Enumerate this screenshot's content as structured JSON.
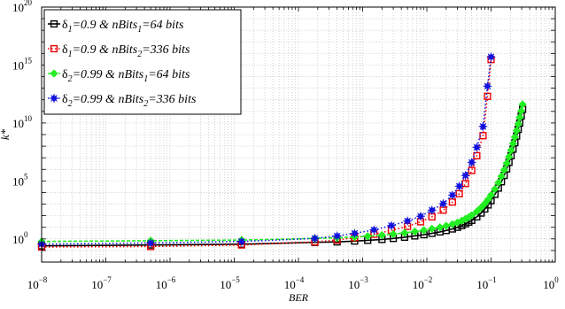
{
  "chart_data": {
    "type": "line",
    "xlabel": "BER",
    "ylabel": "k*",
    "x_scale": "log",
    "y_scale": "log",
    "xlim": [
      1e-08,
      1
    ],
    "ylim": [
      0.01,
      1e+20
    ],
    "x_ticks": [
      {
        "base": "10",
        "exp": "−8",
        "value": 1e-08
      },
      {
        "base": "10",
        "exp": "−7",
        "value": 1e-07
      },
      {
        "base": "10",
        "exp": "−6",
        "value": 1e-06
      },
      {
        "base": "10",
        "exp": "−5",
        "value": 1e-05
      },
      {
        "base": "10",
        "exp": "−4",
        "value": 0.0001
      },
      {
        "base": "10",
        "exp": "−3",
        "value": 0.001
      },
      {
        "base": "10",
        "exp": "−2",
        "value": 0.01
      },
      {
        "base": "10",
        "exp": "−1",
        "value": 0.1
      },
      {
        "base": "10",
        "exp": "0",
        "value": 1
      }
    ],
    "y_ticks": [
      {
        "base": "10",
        "exp": "0",
        "value": 1
      },
      {
        "base": "10",
        "exp": "5",
        "value": 100000.0
      },
      {
        "base": "10",
        "exp": "10",
        "value": 10000000000.0
      },
      {
        "base": "10",
        "exp": "15",
        "value": 1000000000000000.0
      },
      {
        "base": "10",
        "exp": "20",
        "value": 1e+20
      }
    ],
    "grid": true,
    "legend_position": "top-left",
    "series": [
      {
        "name_parts": [
          "δ",
          "1",
          "=0.9 & nBits",
          "1",
          "=64 bits"
        ],
        "color": "#000000",
        "marker": "square",
        "line": "solid",
        "x": [
          1e-08,
          5e-07,
          1.3e-05,
          0.00018,
          0.0004,
          0.00075,
          0.0012,
          0.002,
          0.003,
          0.0045,
          0.0065,
          0.009,
          0.012,
          0.016,
          0.02,
          0.025,
          0.03,
          0.035,
          0.04,
          0.045,
          0.05,
          0.06,
          0.07,
          0.08,
          0.09,
          0.1,
          0.115,
          0.13,
          0.145,
          0.16,
          0.175,
          0.19,
          0.205,
          0.22,
          0.235,
          0.25,
          0.265,
          0.28,
          0.295,
          0.31
        ],
        "y": [
          0.25,
          0.3,
          0.35,
          0.5,
          0.55,
          0.65,
          0.75,
          0.9,
          1.1,
          1.4,
          1.8,
          2.3,
          3,
          4,
          5.3,
          7.2,
          10,
          14,
          20,
          28,
          40,
          80,
          170,
          380,
          850,
          2000,
          7000,
          24000.0,
          85000.0,
          300000.0,
          1100000.0,
          4000000.0,
          15000000.0,
          55000000.0,
          200000000.0,
          750000000.0,
          2800000000.0,
          10000000000.0,
          40000000000.0,
          150000000000.0
        ]
      },
      {
        "name_parts": [
          "δ",
          "1",
          "=0.9 & nBits",
          "2",
          "=336 bits"
        ],
        "color": "#ee0000",
        "marker": "square",
        "line": "dotted",
        "x": [
          1e-08,
          5e-07,
          1.3e-05,
          0.00018,
          0.0004,
          0.00075,
          0.0015,
          0.0028,
          0.005,
          0.008,
          0.012,
          0.018,
          0.025,
          0.032,
          0.04,
          0.05,
          0.06,
          0.075,
          0.088,
          0.1
        ],
        "y": [
          0.2,
          0.22,
          0.3,
          0.55,
          0.8,
          1.3,
          2.5,
          5.5,
          12,
          30,
          80,
          300,
          1500,
          8000,
          60000.0,
          800000.0,
          15000000.0,
          800000000.0,
          2000000000000.0,
          3000000000000000.0
        ]
      },
      {
        "name_parts": [
          "δ",
          "2",
          "=0.99 & nBits",
          "1",
          "=64 bits"
        ],
        "color": "#22ee22",
        "marker": "diamond",
        "line": "dashed",
        "x": [
          1e-08,
          5e-07,
          1.3e-05,
          0.00018,
          0.0004,
          0.00075,
          0.0012,
          0.002,
          0.003,
          0.0045,
          0.0065,
          0.009,
          0.012,
          0.016,
          0.02,
          0.025,
          0.03,
          0.035,
          0.04,
          0.045,
          0.05,
          0.06,
          0.07,
          0.08,
          0.09,
          0.1,
          0.115,
          0.13,
          0.145,
          0.16,
          0.175,
          0.19,
          0.205,
          0.22,
          0.235,
          0.25,
          0.265,
          0.28,
          0.295,
          0.31
        ],
        "y": [
          0.6,
          0.7,
          0.8,
          1.1,
          1.25,
          1.45,
          1.7,
          2.1,
          2.6,
          3.3,
          4.3,
          5.6,
          7.5,
          10,
          13.5,
          18.5,
          26,
          37,
          53,
          76,
          110,
          230,
          500,
          1100,
          2500,
          6000,
          20000.0,
          70000.0,
          250000.0,
          900000.0,
          3300000.0,
          12000000.0,
          45000000.0,
          170000000.0,
          600000000.0,
          2200000000.0,
          8000000000.0,
          30000000000.0,
          110000000000.0,
          400000000000.0
        ]
      },
      {
        "name_parts": [
          "δ",
          "2",
          "=0.99 & nBits",
          "2",
          "=336 bits"
        ],
        "color": "#1111dd",
        "marker": "star",
        "line": "dotted",
        "x": [
          1e-08,
          5e-07,
          1.3e-05,
          0.00018,
          0.0004,
          0.00075,
          0.0015,
          0.0028,
          0.005,
          0.008,
          0.012,
          0.018,
          0.025,
          0.032,
          0.04,
          0.05,
          0.06,
          0.075,
          0.088,
          0.1
        ],
        "y": [
          0.35,
          0.45,
          0.6,
          1.1,
          1.8,
          3,
          6,
          14,
          35,
          90,
          300,
          1100,
          6000,
          35000.0,
          300000.0,
          4000000.0,
          80000000.0,
          5000000000.0,
          15000000000000.0,
          5000000000000000.0
        ]
      }
    ]
  }
}
